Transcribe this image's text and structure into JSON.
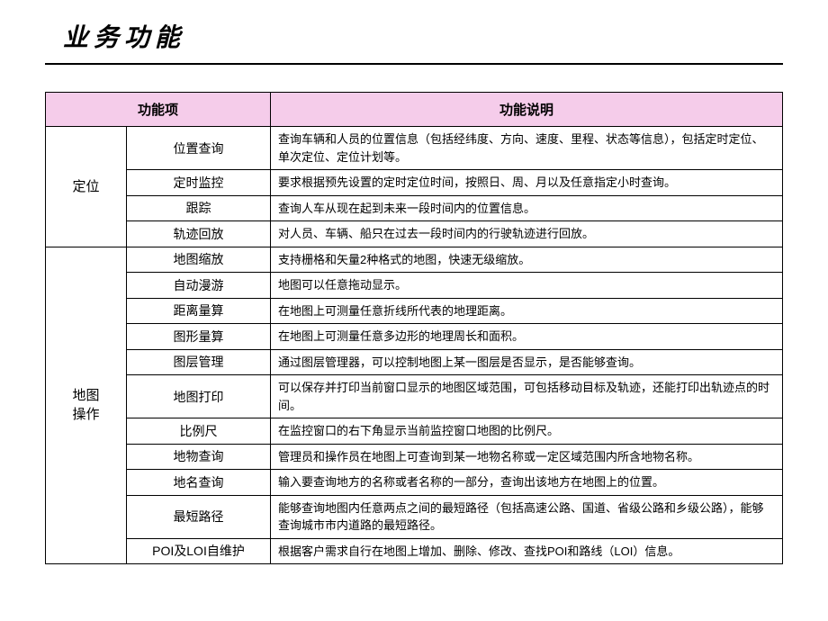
{
  "page": {
    "title": "业务功能"
  },
  "table": {
    "headers": {
      "feature": "功能项",
      "description": "功能说明"
    },
    "groups": [
      {
        "category": "定位",
        "rows": [
          {
            "feature": "位置查询",
            "desc": "查询车辆和人员的位置信息（包括经纬度、方向、速度、里程、状态等信息），包括定时定位、单次定位、定位计划等。",
            "tall": true
          },
          {
            "feature": "定时监控",
            "desc": "要求根据预先设置的定时定位时间，按照日、周、月以及任意指定小时查询。"
          },
          {
            "feature": "跟踪",
            "desc": "查询人车从现在起到未来一段时间内的位置信息。"
          },
          {
            "feature": "轨迹回放",
            "desc": "对人员、车辆、船只在过去一段时间内的行驶轨迹进行回放。"
          }
        ]
      },
      {
        "category": "地图操作",
        "rows": [
          {
            "feature": "地图缩放",
            "desc": "支持栅格和矢量2种格式的地图，快速无级缩放。"
          },
          {
            "feature": "自动漫游",
            "desc": "地图可以任意拖动显示。"
          },
          {
            "feature": "距离量算",
            "desc": "在地图上可测量任意折线所代表的地理距离。"
          },
          {
            "feature": "图形量算",
            "desc": "在地图上可测量任意多边形的地理周长和面积。"
          },
          {
            "feature": "图层管理",
            "desc": "通过图层管理器，可以控制地图上某一图层是否显示，是否能够查询。"
          },
          {
            "feature": "地图打印",
            "desc": "可以保存并打印当前窗口显示的地图区域范围，可包括移动目标及轨迹，还能打印出轨迹点的时间。",
            "tall": true
          },
          {
            "feature": "比例尺",
            "desc": "在监控窗口的右下角显示当前监控窗口地图的比例尺。"
          },
          {
            "feature": "地物查询",
            "desc": "管理员和操作员在地图上可查询到某一地物名称或一定区域范围内所含地物名称。"
          },
          {
            "feature": "地名查询",
            "desc": "输入要查询地方的名称或者名称的一部分，查询出该地方在地图上的位置。"
          },
          {
            "feature": "最短路径",
            "desc": "能够查询地图内任意两点之间的最短路径（包括高速公路、国道、省级公路和乡级公路），能够查询城市市内道路的最短路径。",
            "tall": true
          },
          {
            "feature": "POI及LOI自维护",
            "desc": "根据客户需求自行在地图上增加、删除、修改、查找POI和路线（LOI）信息。"
          }
        ]
      }
    ]
  },
  "colors": {
    "header_bg": "#f5ccea",
    "border": "#000000",
    "background": "#ffffff",
    "text": "#000000"
  }
}
